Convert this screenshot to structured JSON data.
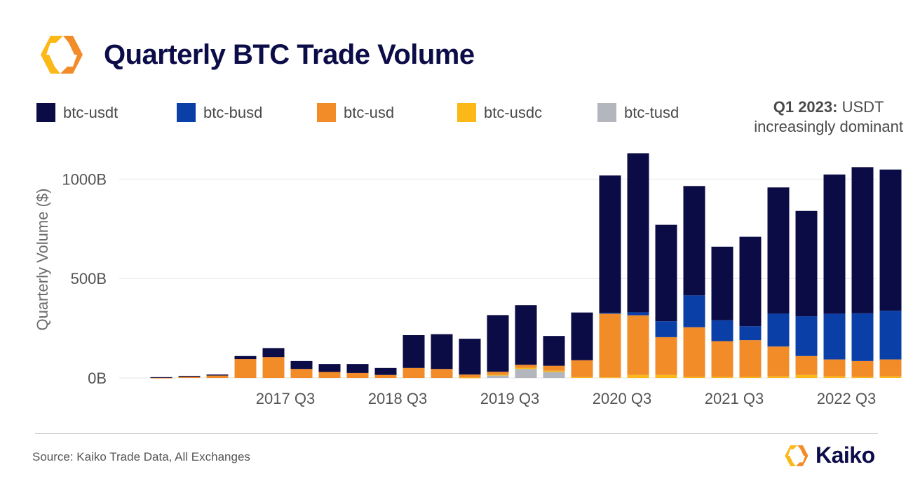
{
  "title": "Quarterly BTC Trade Volume",
  "annotation": {
    "bold": "Q1 2023:",
    "rest": " USDT",
    "line2": "increasingly dominant"
  },
  "source": "Source: Kaiko Trade Data, All Exchanges",
  "brand": "Kaiko",
  "colors": {
    "btc-usdt": "#0b0b45",
    "btc-busd": "#0a3fa8",
    "btc-usd": "#f28c28",
    "btc-usdc": "#fbb817",
    "btc-tusd": "#b3b6bd",
    "grid": "#e6e6e6",
    "title": "#0c0c48"
  },
  "legend": [
    {
      "key": "btc-usdt",
      "label": "btc-usdt"
    },
    {
      "key": "btc-busd",
      "label": "btc-busd"
    },
    {
      "key": "btc-usd",
      "label": "btc-usd"
    },
    {
      "key": "btc-usdc",
      "label": "btc-usdc"
    },
    {
      "key": "btc-tusd",
      "label": "btc-tusd"
    }
  ],
  "chart_data": {
    "type": "bar",
    "stacked": true,
    "title": "Quarterly BTC Trade Volume",
    "xlabel": "",
    "ylabel": "Quarterly Volume ($)",
    "ylim": [
      0,
      1100
    ],
    "yticks": [
      0,
      500,
      1000
    ],
    "ytick_labels": [
      "0B",
      "500B",
      "1000B"
    ],
    "grid": true,
    "legend_position": "top",
    "categories": [
      "2016 Q3",
      "2016 Q4",
      "2017 Q1",
      "2017 Q2",
      "2017 Q3",
      "2017 Q4",
      "2018 Q1",
      "2018 Q2",
      "2018 Q3",
      "2018 Q4",
      "2019 Q1",
      "2019 Q2",
      "2019 Q3",
      "2019 Q4",
      "2020 Q1",
      "2020 Q2",
      "2020 Q3",
      "2020 Q4",
      "2021 Q1",
      "2021 Q2",
      "2021 Q3",
      "2021 Q4",
      "2022 Q1",
      "2022 Q2",
      "2022 Q3",
      "2022 Q4",
      "2023 Q1"
    ],
    "xtick_labels": [
      {
        "index": 4,
        "label": "2017 Q3"
      },
      {
        "index": 8,
        "label": "2018 Q3"
      },
      {
        "index": 12,
        "label": "2019 Q3"
      },
      {
        "index": 16,
        "label": "2020 Q3"
      },
      {
        "index": 20,
        "label": "2021 Q3"
      },
      {
        "index": 24,
        "label": "2022 Q3"
      }
    ],
    "series": [
      {
        "name": "btc-tusd",
        "values": [
          0,
          0,
          0,
          0,
          0,
          0,
          0,
          0,
          0,
          0,
          0,
          0,
          12,
          45,
          30,
          0,
          0,
          0,
          0,
          0,
          0,
          0,
          0,
          0,
          0,
          0,
          0
        ]
      },
      {
        "name": "btc-usdc",
        "values": [
          0,
          0,
          0,
          0,
          0,
          0,
          0,
          0,
          0,
          0,
          0,
          2,
          4,
          6,
          6,
          4,
          3,
          15,
          15,
          5,
          5,
          5,
          8,
          15,
          8,
          5,
          8
        ]
      },
      {
        "name": "btc-usd",
        "values": [
          1,
          5,
          12,
          95,
          105,
          45,
          30,
          25,
          15,
          50,
          45,
          15,
          15,
          15,
          25,
          85,
          320,
          300,
          190,
          250,
          180,
          185,
          150,
          95,
          85,
          80,
          85
        ]
      },
      {
        "name": "btc-busd",
        "values": [
          0,
          0,
          0,
          0,
          0,
          0,
          0,
          0,
          0,
          0,
          0,
          0,
          0,
          0,
          0,
          0,
          5,
          15,
          80,
          160,
          105,
          70,
          165,
          200,
          230,
          240,
          245
        ]
      },
      {
        "name": "btc-usdt",
        "values": [
          3,
          5,
          5,
          15,
          45,
          40,
          40,
          45,
          35,
          165,
          175,
          180,
          285,
          300,
          150,
          240,
          690,
          800,
          485,
          550,
          370,
          450,
          635,
          530,
          700,
          735,
          710
        ]
      }
    ]
  }
}
